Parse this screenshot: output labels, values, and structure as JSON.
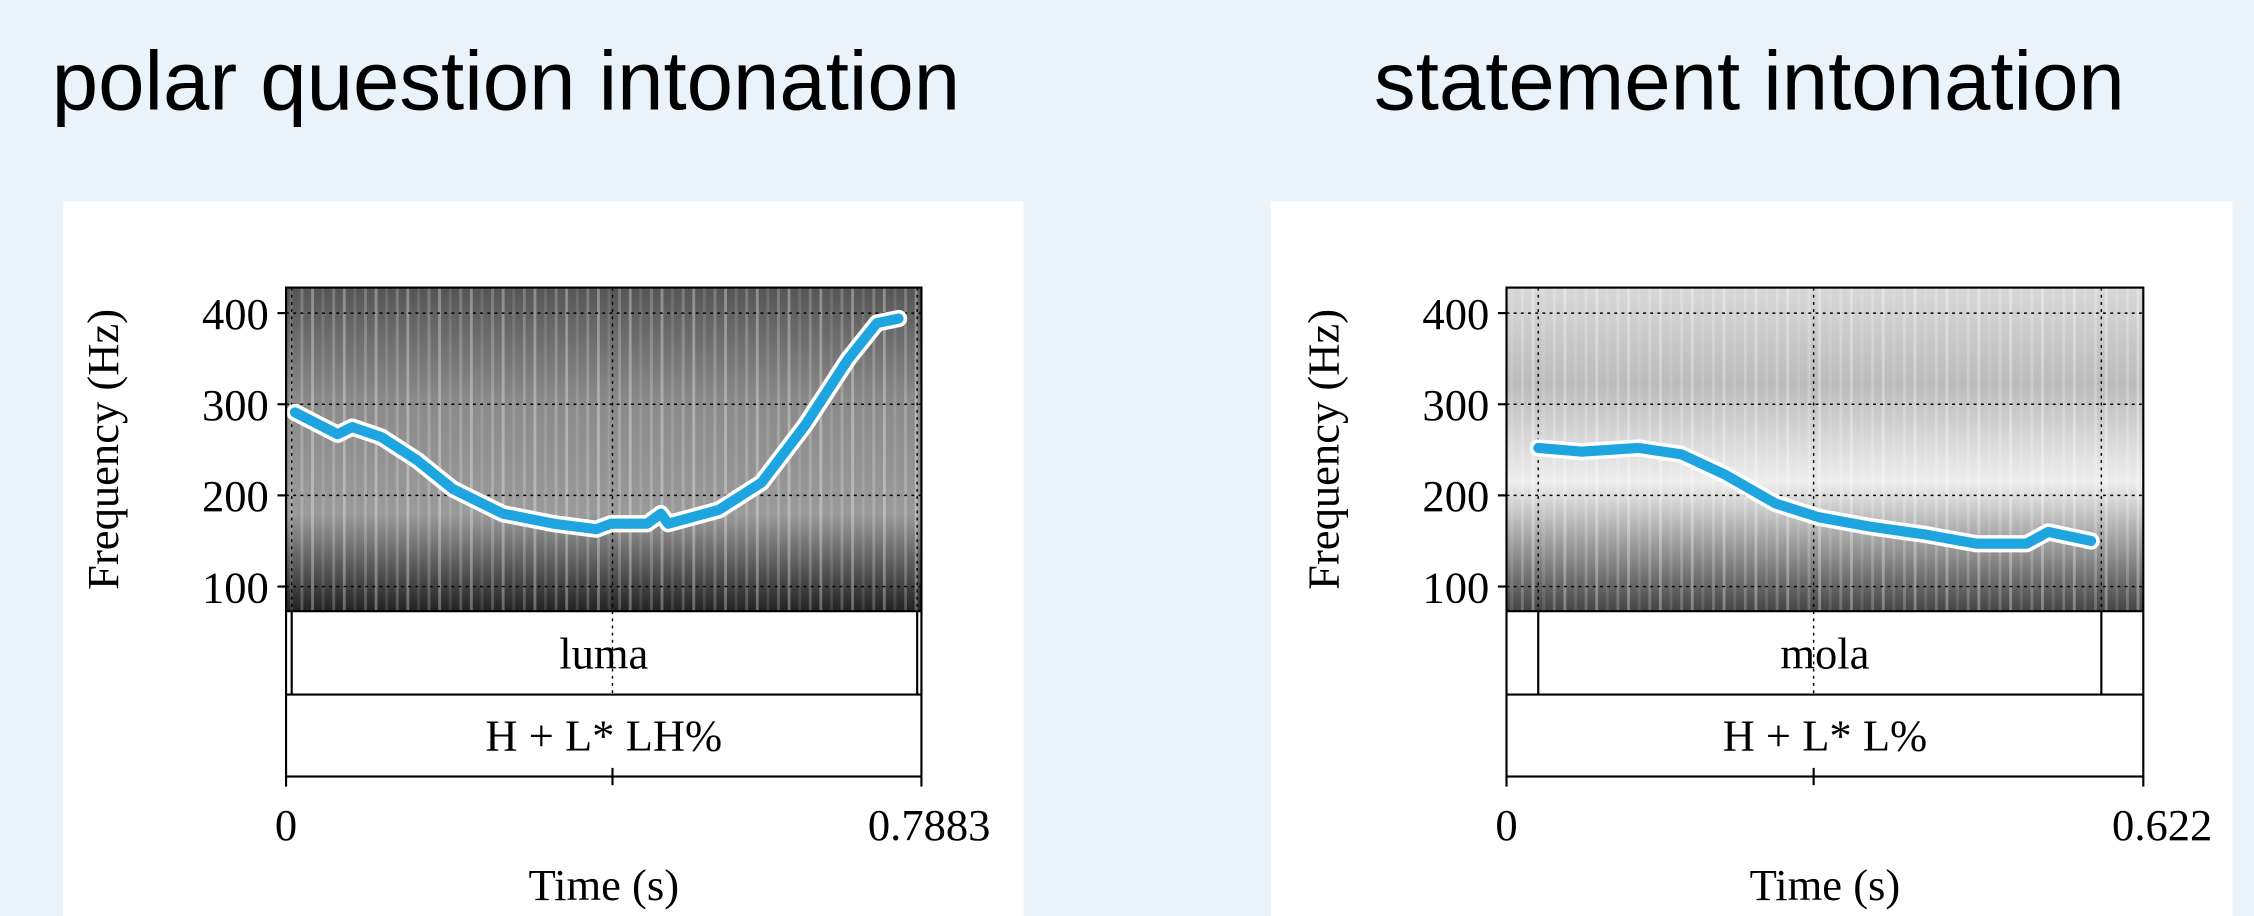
{
  "chart_data": [
    {
      "type": "line",
      "title": "polar question intonation",
      "x_label": "Time (s)",
      "y_label": "Frequency (Hz)",
      "xlim": [
        0,
        0.7883
      ],
      "xticks": [
        0,
        0.7883
      ],
      "ylim": [
        73,
        428
      ],
      "yticks": [
        100,
        200,
        300,
        400
      ],
      "grid": true,
      "color": "#1ea4de",
      "x": [
        0.011,
        0.064,
        0.082,
        0.118,
        0.162,
        0.207,
        0.269,
        0.332,
        0.385,
        0.403,
        0.448,
        0.465,
        0.474,
        0.537,
        0.59,
        0.644,
        0.697,
        0.733,
        0.76
      ],
      "values": [
        291,
        267,
        275,
        264,
        239,
        207,
        180,
        169,
        163,
        169,
        169,
        180,
        169,
        184,
        214,
        277,
        349,
        389,
        394
      ],
      "tiers": [
        {
          "label": "luma",
          "bounds": [
            0.007,
            0.783
          ]
        },
        {
          "label": "H + L* LH%",
          "points": [
            0.405
          ]
        }
      ]
    },
    {
      "type": "line",
      "title": "statement intonation",
      "x_label": "Time (s)",
      "y_label": "Frequency (Hz)",
      "xlim": [
        0,
        0.622
      ],
      "xticks": [
        0,
        0.622
      ],
      "ylim": [
        73,
        428
      ],
      "yticks": [
        100,
        200,
        300,
        400
      ],
      "grid": true,
      "color": "#1ea4de",
      "x": [
        0.031,
        0.073,
        0.129,
        0.171,
        0.213,
        0.263,
        0.305,
        0.354,
        0.41,
        0.459,
        0.508,
        0.529,
        0.571
      ],
      "values": [
        252,
        248,
        252,
        245,
        223,
        191,
        176,
        166,
        157,
        147,
        147,
        160,
        150
      ],
      "tiers": [
        {
          "label": "mola",
          "bounds": [
            0.031,
            0.581
          ]
        },
        {
          "label": "H + L* L%",
          "points": [
            0.3
          ]
        }
      ]
    }
  ]
}
